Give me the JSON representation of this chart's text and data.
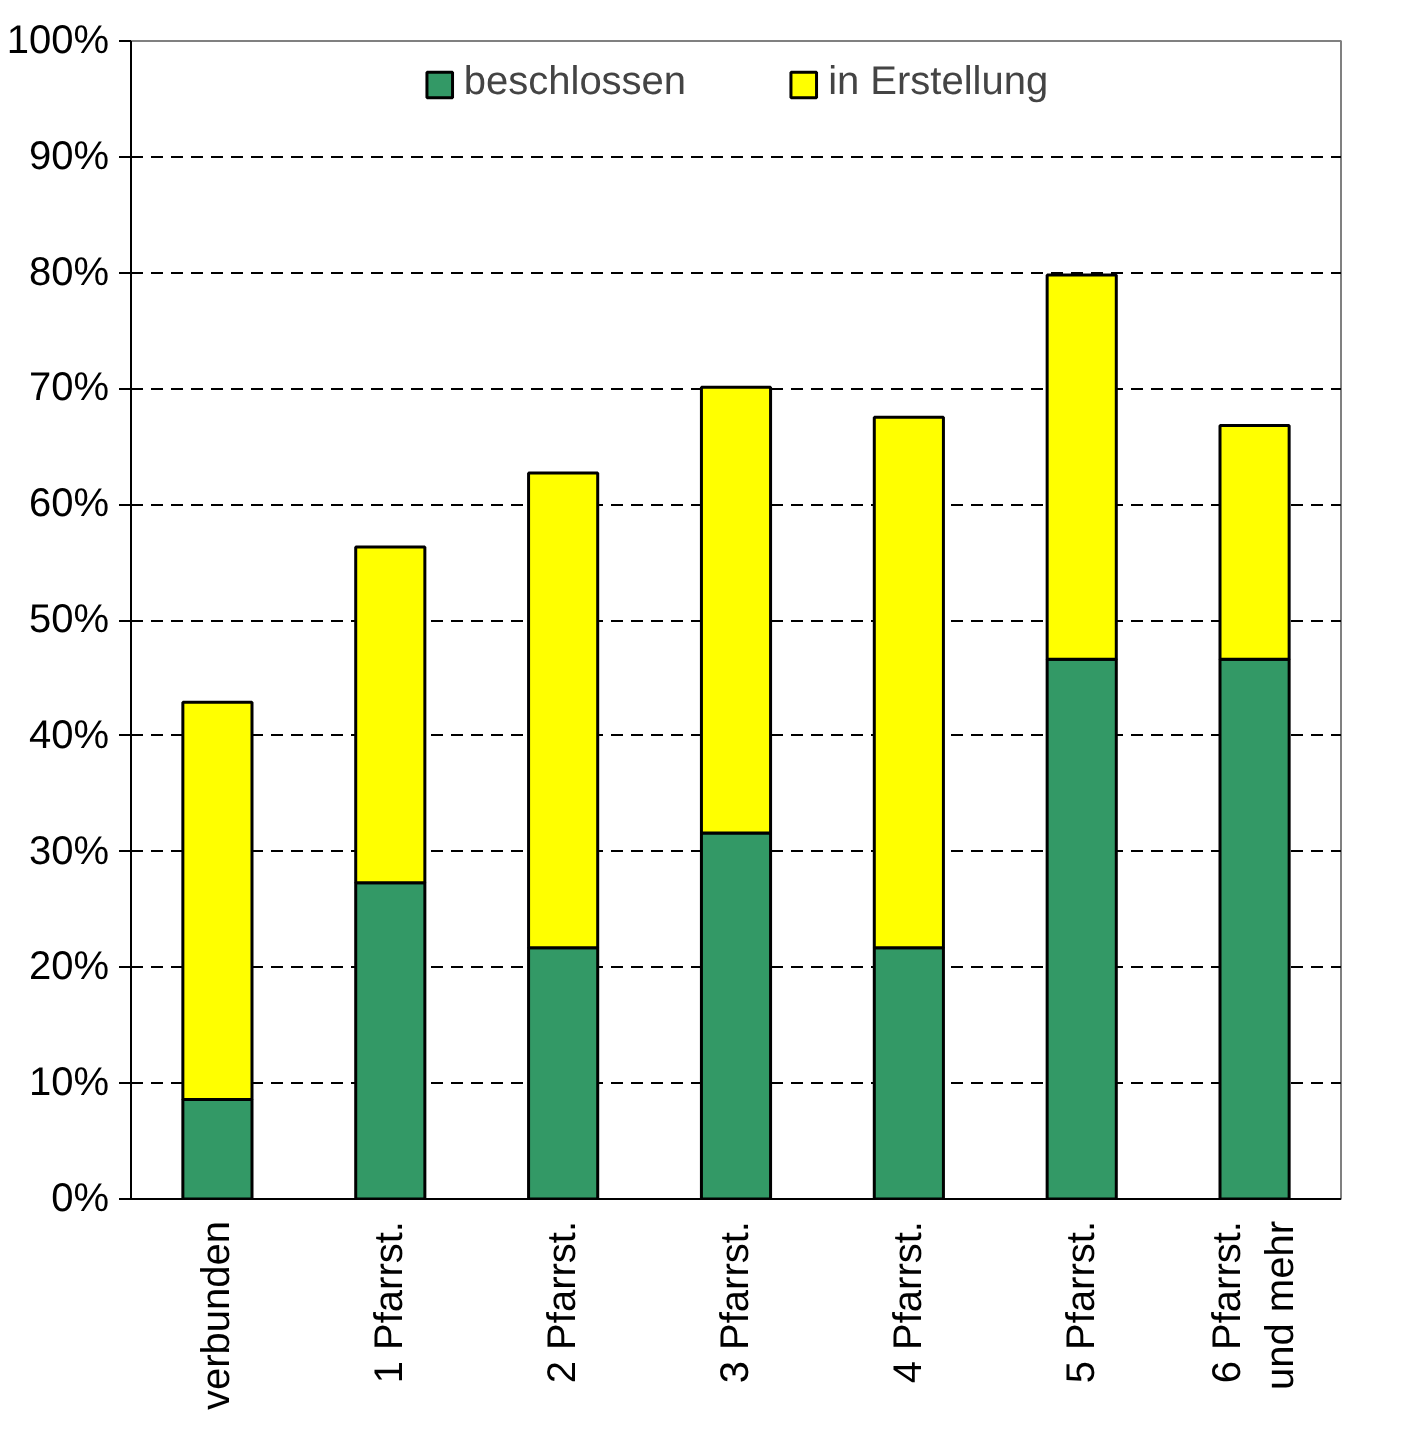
{
  "chart_data": {
    "type": "bar",
    "stacked": true,
    "categories": [
      "verbunden",
      "1 Pfarrst.",
      "2 Pfarrst.",
      "3 Pfarrst.",
      "4 Pfarrst.",
      "5 Pfarrst.",
      "6 Pfarrst.\nund mehr"
    ],
    "series": [
      {
        "name": "beschlossen",
        "color": "#339966",
        "values": [
          8.6,
          27.3,
          21.7,
          31.6,
          21.7,
          46.6,
          46.6
        ]
      },
      {
        "name": "in Erstellung",
        "color": "#ffff00",
        "values": [
          34.3,
          29.0,
          41.0,
          38.5,
          45.8,
          33.2,
          20.2
        ]
      }
    ],
    "ylim": [
      0,
      100
    ],
    "yticks": [
      {
        "value": 0,
        "label": "0%"
      },
      {
        "value": 10,
        "label": "10%"
      },
      {
        "value": 20,
        "label": "20%"
      },
      {
        "value": 30,
        "label": "30%"
      },
      {
        "value": 40,
        "label": "40%"
      },
      {
        "value": 50,
        "label": "50%"
      },
      {
        "value": 60,
        "label": "60%"
      },
      {
        "value": 70,
        "label": "70%"
      },
      {
        "value": 80,
        "label": "80%"
      },
      {
        "value": 90,
        "label": "90%"
      },
      {
        "value": 100,
        "label": "100%"
      }
    ],
    "grid": "y",
    "legend": "top"
  }
}
